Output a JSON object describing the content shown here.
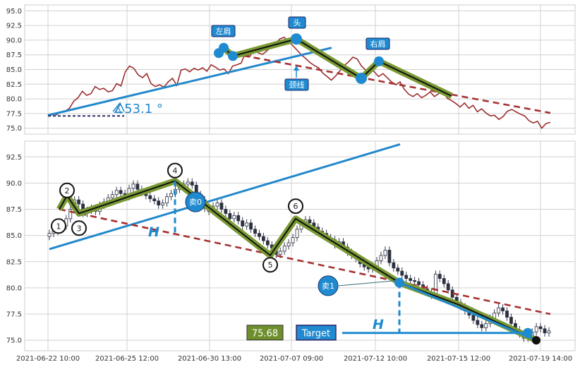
{
  "chart_data": [
    {
      "type": "line",
      "panel": "top",
      "ylim": [
        74,
        96
      ],
      "yticks": [
        "75.0",
        "77.5",
        "80.0",
        "82.5",
        "85.0",
        "87.5",
        "90.0",
        "92.5",
        "95.0"
      ],
      "grid": true,
      "annotations": {
        "left_shoulder": "左肩",
        "head": "头",
        "right_shoulder": "右肩",
        "neckline": "颈线",
        "angle": "∡53.1 °"
      },
      "series": [
        {
          "values": [
            77.2,
            77.5,
            77.3,
            77.8,
            77.9,
            78.4,
            79.6,
            80.2,
            81.3,
            80.6,
            80.9,
            82.1,
            81.6,
            81.8,
            81.2,
            81.4,
            82.6,
            82.2,
            84.6,
            85.6,
            85.2,
            84.1,
            83.6,
            84.3,
            82.6,
            82.1,
            82.4,
            82.0,
            82.9,
            83.5,
            82.3,
            84.9,
            85.1,
            84.6,
            85.2,
            84.9,
            85.3,
            84.7,
            85.8,
            85.4,
            84.9,
            85.1,
            84.3,
            85.6,
            85.8,
            86.1,
            87.9,
            87.2,
            88.5,
            87.8,
            87.6,
            88.2,
            88.9,
            89.4,
            90.2,
            90.5,
            89.8,
            89.1,
            88.3,
            87.5,
            86.9,
            86.2,
            85.7,
            85.3,
            84.4,
            83.8,
            83.2,
            83.9,
            84.8,
            85.7,
            86.3,
            87.1,
            86.8,
            85.6,
            84.9,
            85.2,
            84.6,
            83.8,
            84.3,
            83.6,
            82.9,
            82.4,
            82.9,
            81.6,
            80.8,
            80.4,
            80.9,
            80.2,
            80.6,
            81.2,
            80.4,
            80.9,
            81.3,
            80.1,
            79.7,
            79.2,
            78.6,
            79.3,
            78.4,
            78.9,
            77.8,
            78.3,
            77.6,
            77.1,
            77.2,
            76.5,
            77.0,
            77.9,
            78.2,
            77.8,
            77.4,
            77.1,
            76.3,
            75.9,
            76.2,
            75.0,
            75.8,
            76.0
          ]
        }
      ]
    },
    {
      "type": "candlestick",
      "panel": "bottom",
      "ylim": [
        74,
        94
      ],
      "yticks": [
        "75.0",
        "77.5",
        "80.0",
        "82.5",
        "85.0",
        "87.5",
        "90.0",
        "92.5"
      ],
      "xticks": [
        "2021-06-22 10:00",
        "2021-06-25 12:00",
        "2021-06-30 13:00",
        "2021-07-07 09:00",
        "2021-07-12 10:00",
        "2021-07-15 12:00",
        "2021-07-19 14:00"
      ],
      "grid": true,
      "annotations": {
        "points": [
          "1",
          "2",
          "3",
          "4",
          "5",
          "6"
        ],
        "sell0": "卖0",
        "sell1": "卖1",
        "height_marker": "H",
        "price_box": "75.68",
        "target_box": "Target"
      },
      "close": [
        85.2,
        85.4,
        85.7,
        85.9,
        86.6,
        87.5,
        88.4,
        88.0,
        87.1,
        87.4,
        87.6,
        87.3,
        87.9,
        88.2,
        88.6,
        88.9,
        89.3,
        89.0,
        88.7,
        89.5,
        89.9,
        89.4,
        89.1,
        88.8,
        88.5,
        88.3,
        87.9,
        88.1,
        88.7,
        89.0,
        89.4,
        89.6,
        89.9,
        90.1,
        89.8,
        88.9,
        88.4,
        87.6,
        87.3,
        87.8,
        88.1,
        87.5,
        87.1,
        86.6,
        86.9,
        86.4,
        85.9,
        86.2,
        85.6,
        85.2,
        84.9,
        84.5,
        84.1,
        83.8,
        83.2,
        83.5,
        84.0,
        84.3,
        84.8,
        85.6,
        86.1,
        86.5,
        86.2,
        85.8,
        85.4,
        85.2,
        84.8,
        84.6,
        84.1,
        84.4,
        83.9,
        83.4,
        83.1,
        82.8,
        82.3,
        82.0,
        81.8,
        82.1,
        82.6,
        83.1,
        83.6,
        82.4,
        81.9,
        81.6,
        81.2,
        80.9,
        80.7,
        80.6,
        80.3,
        79.9,
        79.6,
        79.3,
        81.3,
        80.9,
        80.4,
        79.8,
        79.1,
        78.6,
        78.2,
        77.8,
        77.4,
        76.9,
        76.5,
        76.2,
        76.6,
        77.1,
        77.6,
        78.1,
        77.8,
        77.2,
        76.6,
        76.0,
        75.6,
        75.2,
        75.4,
        75.8,
        76.3,
        76.1,
        75.7,
        75.9
      ]
    }
  ]
}
